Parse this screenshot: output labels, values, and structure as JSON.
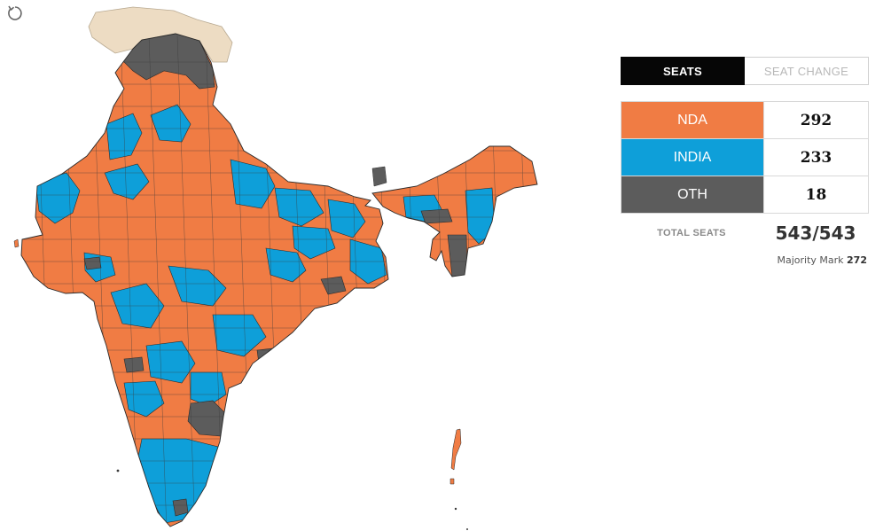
{
  "colors": {
    "nda": "#f07c44",
    "india": "#0e9fd9",
    "oth": "#5c5c5c",
    "unassigned": "#eddcc3",
    "border": "#3a3a3a"
  },
  "icons": {
    "reset": "reset-icon"
  },
  "tabs": [
    {
      "label": "SEATS",
      "active": true
    },
    {
      "label": "SEAT CHANGE",
      "active": false
    }
  ],
  "alliances": [
    {
      "name": "NDA",
      "seats": "292",
      "color": "#f07c44"
    },
    {
      "name": "INDIA",
      "seats": "233",
      "color": "#0e9fd9"
    },
    {
      "name": "OTH",
      "seats": "18",
      "color": "#5c5c5c"
    }
  ],
  "total": {
    "label": "TOTAL SEATS",
    "value": "543/543"
  },
  "majority": {
    "label": "Majority Mark",
    "value": "272"
  }
}
